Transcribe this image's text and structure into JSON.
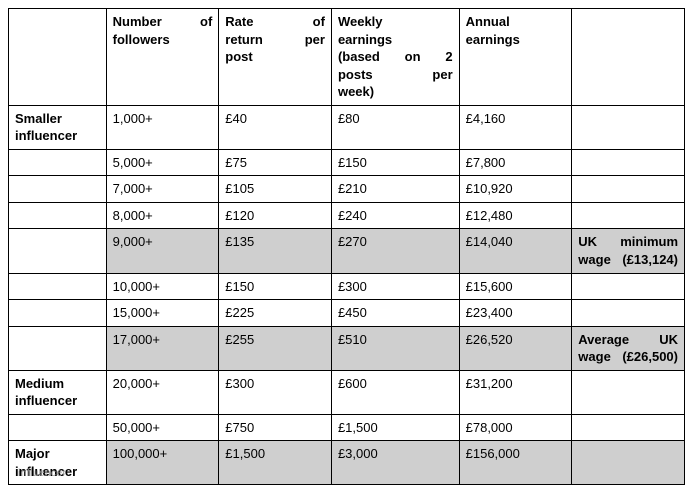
{
  "table": {
    "headers": {
      "tier": "",
      "followers_l1": "Number of",
      "followers_l2": "followers",
      "rate_l1": "Rate of",
      "rate_l2": "return per",
      "rate_l3": "post",
      "weekly_l1": "Weekly",
      "weekly_l2": "earnings",
      "weekly_l3": "(based on 2",
      "weekly_l4": "posts per",
      "weekly_l5": "week)",
      "annual_l1": "Annual",
      "annual_l2": "earnings",
      "note": ""
    },
    "rows": [
      {
        "tier": "Smaller influencer",
        "followers": "1,000+",
        "rate": "£40",
        "weekly": "£80",
        "annual": "£4,160",
        "note": "",
        "shaded": false
      },
      {
        "tier": "",
        "followers": "5,000+",
        "rate": "£75",
        "weekly": "£150",
        "annual": "£7,800",
        "note": "",
        "shaded": false
      },
      {
        "tier": "",
        "followers": "7,000+",
        "rate": "£105",
        "weekly": "£210",
        "annual": "£10,920",
        "note": "",
        "shaded": false
      },
      {
        "tier": "",
        "followers": "8,000+",
        "rate": "£120",
        "weekly": "£240",
        "annual": "£12,480",
        "note": "",
        "shaded": false
      },
      {
        "tier": "",
        "followers": "9,000+",
        "rate": "£135",
        "weekly": "£270",
        "annual": "£14,040",
        "note": "UK minimum wage (£13,124)",
        "shaded": true
      },
      {
        "tier": "",
        "followers": "10,000+",
        "rate": "£150",
        "weekly": "£300",
        "annual": "£15,600",
        "note": "",
        "shaded": false
      },
      {
        "tier": "",
        "followers": "15,000+",
        "rate": "£225",
        "weekly": "£450",
        "annual": "£23,400",
        "note": "",
        "shaded": false
      },
      {
        "tier": "",
        "followers": "17,000+",
        "rate": "£255",
        "weekly": "£510",
        "annual": "£26,520",
        "note": "Average UK wage (£26,500)",
        "shaded": true
      },
      {
        "tier": "Medium influencer",
        "followers": "20,000+",
        "rate": "£300",
        "weekly": "£600",
        "annual": "£31,200",
        "note": "",
        "shaded": false
      },
      {
        "tier": "",
        "followers": "50,000+",
        "rate": "£750",
        "weekly": "£1,500",
        "annual": "£78,000",
        "note": "",
        "shaded": false
      },
      {
        "tier": "Major influencer",
        "followers": "100,000+",
        "rate": "£1,500",
        "weekly": "£3,000",
        "annual": "£156,000",
        "note": "",
        "shaded": true
      }
    ],
    "colors": {
      "shaded_bg": "#cfcfcf",
      "border": "#000000",
      "text": "#000000",
      "background": "#ffffff"
    },
    "font_size_pt": 10
  },
  "watermark": "influencer"
}
